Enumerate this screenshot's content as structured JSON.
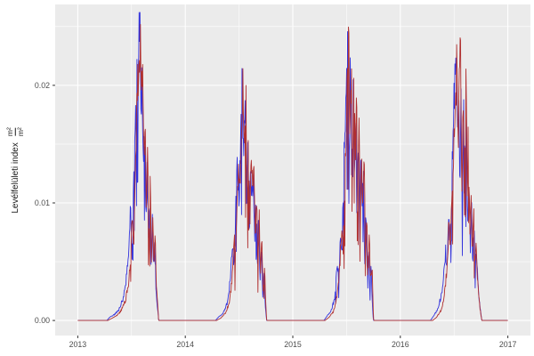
{
  "figure": {
    "background": "#FFFFFF"
  },
  "ylabel": {
    "text": "Levélfelületi index",
    "frac_num": "m²",
    "frac_den": "m²"
  },
  "chart_data": {
    "type": "line",
    "title": "",
    "xlabel": "",
    "ylabel": "Levélfelületi index (m²/m²)",
    "legend": "none",
    "grid": "on",
    "panel": {
      "bg": "#EBEBEB",
      "grid_major_color": "#FFFFFF",
      "grid_minor_color": "#FFFFFF",
      "tick_color": "#333333",
      "tick_label_color": "#4D4D4D"
    },
    "x_axis": {
      "range": [
        2012.79,
        2017.21
      ],
      "major_ticks": [
        {
          "value": 2013,
          "label": "2013"
        },
        {
          "value": 2014,
          "label": "2014"
        },
        {
          "value": 2015,
          "label": "2015"
        },
        {
          "value": 2016,
          "label": "2016"
        },
        {
          "value": 2017,
          "label": "2017"
        }
      ],
      "minor_gridlines": [
        2013.5,
        2014.5,
        2015.5,
        2016.5
      ]
    },
    "y_axis": {
      "range": [
        -0.00128,
        0.02688
      ],
      "major_ticks": [
        {
          "value": 0.0,
          "label": "0.00"
        },
        {
          "value": 0.01,
          "label": "0.01"
        },
        {
          "value": 0.02,
          "label": "0.02"
        }
      ],
      "minor_gridlines": [
        0.005,
        0.015,
        0.025
      ]
    },
    "sample_step_days": 1.5,
    "value_cap": 0.0262,
    "series": [
      {
        "name": "blue",
        "color": "#3232DC",
        "width": 0.9,
        "seed": 42,
        "noise_rel": 0.11,
        "dip_prob": 0.07,
        "dip_factor": 0.55,
        "keypoints": [
          [
            2013.0,
            0
          ],
          [
            2013.27,
            0
          ],
          [
            2013.3,
            0.0003
          ],
          [
            2013.34,
            0.0005
          ],
          [
            2013.38,
            0.0009
          ],
          [
            2013.42,
            0.0018
          ],
          [
            2013.45,
            0.0035
          ],
          [
            2013.475,
            0.006
          ],
          [
            2013.49,
            0.0095
          ],
          [
            2013.505,
            0.0055
          ],
          [
            2013.52,
            0.012
          ],
          [
            2013.535,
            0.016
          ],
          [
            2013.55,
            0.0205
          ],
          [
            2013.565,
            0.0238
          ],
          [
            2013.578,
            0.0256
          ],
          [
            2013.588,
            0.0185
          ],
          [
            2013.598,
            0.0215
          ],
          [
            2013.61,
            0.0125
          ],
          [
            2013.622,
            0.0165
          ],
          [
            2013.634,
            0.0085
          ],
          [
            2013.646,
            0.013
          ],
          [
            2013.658,
            0.0065
          ],
          [
            2013.67,
            0.0105
          ],
          [
            2013.682,
            0.005
          ],
          [
            2013.694,
            0.0085
          ],
          [
            2013.705,
            0.0045
          ],
          [
            2013.716,
            0.0065
          ],
          [
            2013.727,
            0.003
          ],
          [
            2013.74,
            0.0012
          ],
          [
            2013.75,
            0.0004
          ],
          [
            2013.752,
            0
          ],
          [
            2014.28,
            0
          ],
          [
            2014.31,
            0.0003
          ],
          [
            2014.35,
            0.0006
          ],
          [
            2014.39,
            0.0015
          ],
          [
            2014.42,
            0.0035
          ],
          [
            2014.44,
            0.007
          ],
          [
            2014.455,
            0.0045
          ],
          [
            2014.47,
            0.01
          ],
          [
            2014.485,
            0.0135
          ],
          [
            2014.5,
            0.0105
          ],
          [
            2014.515,
            0.0165
          ],
          [
            2014.53,
            0.0205
          ],
          [
            2014.543,
            0.0135
          ],
          [
            2014.556,
            0.019
          ],
          [
            2014.569,
            0.0095
          ],
          [
            2014.582,
            0.016
          ],
          [
            2014.595,
            0.0075
          ],
          [
            2014.608,
            0.0145
          ],
          [
            2014.62,
            0.01
          ],
          [
            2014.633,
            0.0135
          ],
          [
            2014.646,
            0.006
          ],
          [
            2014.658,
            0.011
          ],
          [
            2014.67,
            0.004
          ],
          [
            2014.682,
            0.009
          ],
          [
            2014.695,
            0.0035
          ],
          [
            2014.707,
            0.0065
          ],
          [
            2014.72,
            0.002
          ],
          [
            2014.733,
            0.004
          ],
          [
            2014.746,
            0.001
          ],
          [
            2014.757,
            0
          ],
          [
            2015.29,
            0
          ],
          [
            2015.32,
            0.0004
          ],
          [
            2015.36,
            0.0009
          ],
          [
            2015.39,
            0.002
          ],
          [
            2015.415,
            0.005
          ],
          [
            2015.43,
            0.0035
          ],
          [
            2015.445,
            0.008
          ],
          [
            2015.458,
            0.0055
          ],
          [
            2015.47,
            0.012
          ],
          [
            2015.485,
            0.017
          ],
          [
            2015.5,
            0.0215
          ],
          [
            2015.512,
            0.0245
          ],
          [
            2015.524,
            0.0145
          ],
          [
            2015.536,
            0.0225
          ],
          [
            2015.548,
            0.011
          ],
          [
            2015.56,
            0.0215
          ],
          [
            2015.572,
            0.013
          ],
          [
            2015.584,
            0.0185
          ],
          [
            2015.596,
            0.009
          ],
          [
            2015.608,
            0.0155
          ],
          [
            2015.62,
            0.0085
          ],
          [
            2015.632,
            0.014
          ],
          [
            2015.644,
            0.01
          ],
          [
            2015.656,
            0.0125
          ],
          [
            2015.668,
            0.005
          ],
          [
            2015.68,
            0.009
          ],
          [
            2015.692,
            0.004
          ],
          [
            2015.704,
            0.0065
          ],
          [
            2015.716,
            0.003
          ],
          [
            2015.728,
            0.0045
          ],
          [
            2015.74,
            0.0015
          ],
          [
            2015.749,
            0
          ],
          [
            2016.28,
            0
          ],
          [
            2016.31,
            0.0004
          ],
          [
            2016.35,
            0.001
          ],
          [
            2016.39,
            0.0025
          ],
          [
            2016.42,
            0.006
          ],
          [
            2016.435,
            0.0045
          ],
          [
            2016.45,
            0.0095
          ],
          [
            2016.463,
            0.0065
          ],
          [
            2016.476,
            0.012
          ],
          [
            2016.49,
            0.016
          ],
          [
            2016.505,
            0.02
          ],
          [
            2016.518,
            0.0245
          ],
          [
            2016.53,
            0.015
          ],
          [
            2016.542,
            0.021
          ],
          [
            2016.554,
            0.011
          ],
          [
            2016.566,
            0.0195
          ],
          [
            2016.578,
            0.0085
          ],
          [
            2016.59,
            0.0205
          ],
          [
            2016.602,
            0.0115
          ],
          [
            2016.614,
            0.017
          ],
          [
            2016.626,
            0.008
          ],
          [
            2016.638,
            0.0125
          ],
          [
            2016.65,
            0.006
          ],
          [
            2016.662,
            0.01
          ],
          [
            2016.674,
            0.005
          ],
          [
            2016.686,
            0.008
          ],
          [
            2016.698,
            0.0045
          ],
          [
            2016.71,
            0.006
          ],
          [
            2016.722,
            0.003
          ],
          [
            2016.734,
            0.0018
          ],
          [
            2016.748,
            0.0006
          ],
          [
            2016.758,
            0
          ],
          [
            2017.0,
            0
          ]
        ]
      },
      {
        "name": "red",
        "color": "#B03030",
        "width": 0.9,
        "seed": 1337,
        "noise_rel": 0.12,
        "dip_prob": 0.08,
        "dip_factor": 0.5,
        "keypoints": [
          [
            2013.0,
            0
          ],
          [
            2013.28,
            0
          ],
          [
            2013.32,
            0.0002
          ],
          [
            2013.36,
            0.0004
          ],
          [
            2013.4,
            0.0008
          ],
          [
            2013.44,
            0.0016
          ],
          [
            2013.47,
            0.003
          ],
          [
            2013.49,
            0.0055
          ],
          [
            2013.505,
            0.009
          ],
          [
            2013.52,
            0.0065
          ],
          [
            2013.535,
            0.013
          ],
          [
            2013.55,
            0.018
          ],
          [
            2013.565,
            0.0215
          ],
          [
            2013.582,
            0.0248
          ],
          [
            2013.592,
            0.02
          ],
          [
            2013.602,
            0.0225
          ],
          [
            2013.614,
            0.013
          ],
          [
            2013.626,
            0.018
          ],
          [
            2013.638,
            0.009
          ],
          [
            2013.65,
            0.014
          ],
          [
            2013.662,
            0.007
          ],
          [
            2013.674,
            0.0115
          ],
          [
            2013.686,
            0.0055
          ],
          [
            2013.698,
            0.009
          ],
          [
            2013.71,
            0.005
          ],
          [
            2013.72,
            0.007
          ],
          [
            2013.73,
            0.0035
          ],
          [
            2013.742,
            0.0015
          ],
          [
            2013.752,
            0
          ],
          [
            2014.29,
            0
          ],
          [
            2014.33,
            0.0002
          ],
          [
            2014.37,
            0.0006
          ],
          [
            2014.41,
            0.0015
          ],
          [
            2014.435,
            0.0035
          ],
          [
            2014.455,
            0.007
          ],
          [
            2014.468,
            0.005
          ],
          [
            2014.48,
            0.0105
          ],
          [
            2014.495,
            0.014
          ],
          [
            2014.508,
            0.011
          ],
          [
            2014.522,
            0.017
          ],
          [
            2014.537,
            0.0202
          ],
          [
            2014.55,
            0.014
          ],
          [
            2014.563,
            0.0195
          ],
          [
            2014.576,
            0.01
          ],
          [
            2014.589,
            0.0165
          ],
          [
            2014.602,
            0.008
          ],
          [
            2014.614,
            0.015
          ],
          [
            2014.627,
            0.0105
          ],
          [
            2014.64,
            0.014
          ],
          [
            2014.652,
            0.0065
          ],
          [
            2014.664,
            0.0115
          ],
          [
            2014.676,
            0.0045
          ],
          [
            2014.688,
            0.0095
          ],
          [
            2014.7,
            0.004
          ],
          [
            2014.712,
            0.007
          ],
          [
            2014.725,
            0.0025
          ],
          [
            2014.738,
            0.0045
          ],
          [
            2014.75,
            0.0012
          ],
          [
            2014.758,
            0
          ],
          [
            2015.3,
            0
          ],
          [
            2015.34,
            0.0003
          ],
          [
            2015.38,
            0.0008
          ],
          [
            2015.41,
            0.002
          ],
          [
            2015.435,
            0.0045
          ],
          [
            2015.455,
            0.008
          ],
          [
            2015.468,
            0.006
          ],
          [
            2015.48,
            0.0115
          ],
          [
            2015.495,
            0.016
          ],
          [
            2015.508,
            0.02
          ],
          [
            2015.52,
            0.0238
          ],
          [
            2015.532,
            0.015
          ],
          [
            2015.544,
            0.0228
          ],
          [
            2015.556,
            0.0125
          ],
          [
            2015.568,
            0.0235
          ],
          [
            2015.58,
            0.0145
          ],
          [
            2015.592,
            0.0195
          ],
          [
            2015.604,
            0.01
          ],
          [
            2015.616,
            0.016
          ],
          [
            2015.628,
            0.009
          ],
          [
            2015.64,
            0.0145
          ],
          [
            2015.652,
            0.0105
          ],
          [
            2015.664,
            0.013
          ],
          [
            2015.676,
            0.0055
          ],
          [
            2015.688,
            0.0095
          ],
          [
            2015.7,
            0.0045
          ],
          [
            2015.712,
            0.007
          ],
          [
            2015.724,
            0.0032
          ],
          [
            2015.736,
            0.005
          ],
          [
            2015.746,
            0.0015
          ],
          [
            2015.752,
            0
          ],
          [
            2016.3,
            0
          ],
          [
            2016.34,
            0.0003
          ],
          [
            2016.38,
            0.0009
          ],
          [
            2016.41,
            0.0022
          ],
          [
            2016.435,
            0.005
          ],
          [
            2016.455,
            0.009
          ],
          [
            2016.468,
            0.0065
          ],
          [
            2016.48,
            0.0115
          ],
          [
            2016.495,
            0.015
          ],
          [
            2016.51,
            0.019
          ],
          [
            2016.525,
            0.023
          ],
          [
            2016.537,
            0.0145
          ],
          [
            2016.549,
            0.0205
          ],
          [
            2016.561,
            0.0235
          ],
          [
            2016.573,
            0.012
          ],
          [
            2016.585,
            0.0195
          ],
          [
            2016.597,
            0.009
          ],
          [
            2016.61,
            0.0215
          ],
          [
            2016.622,
            0.012
          ],
          [
            2016.634,
            0.0165
          ],
          [
            2016.646,
            0.0075
          ],
          [
            2016.658,
            0.0115
          ],
          [
            2016.67,
            0.0055
          ],
          [
            2016.682,
            0.0095
          ],
          [
            2016.694,
            0.005
          ],
          [
            2016.706,
            0.0065
          ],
          [
            2016.718,
            0.0035
          ],
          [
            2016.73,
            0.002
          ],
          [
            2016.744,
            0.0008
          ],
          [
            2016.758,
            0
          ],
          [
            2017.0,
            0
          ]
        ]
      }
    ]
  }
}
